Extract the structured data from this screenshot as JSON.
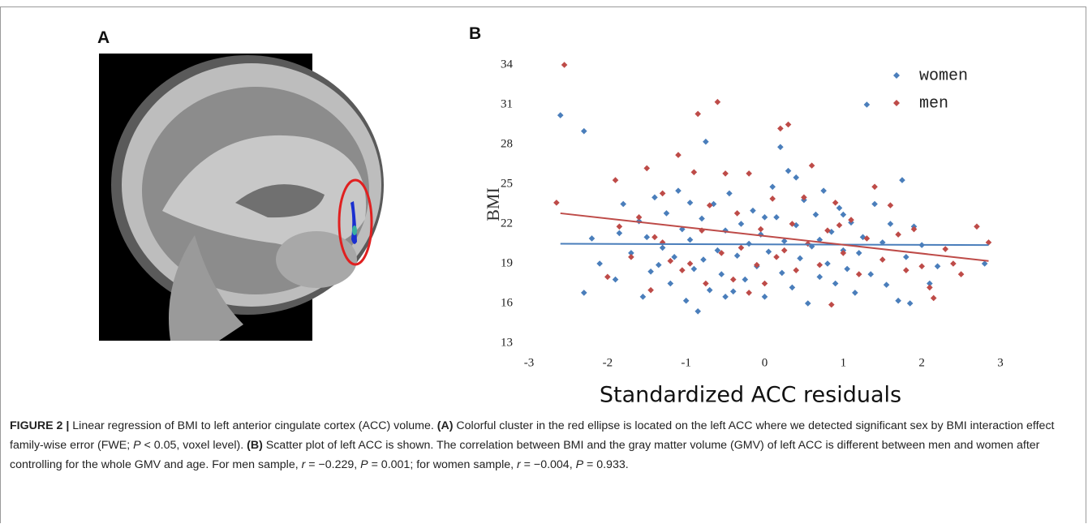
{
  "figure": {
    "panel_labels": [
      "A",
      "B"
    ],
    "caption": [
      "FIGURE 2 | ",
      "Linear regression of BMI to left anterior cingulate cortex (ACC) volume. ",
      "(A)",
      " Colorful cluster in the red ellipse is located on the left ACC where we detected significant sex by BMI interaction effect family-wise error (FWE; ",
      "P",
      " < 0.05, voxel level). ",
      "(B)",
      " Scatter plot of left ACC is shown. The correlation between BMI and the gray matter volume (GMV) of left ACC is different between men and women after controlling for the whole GMV and age. For men sample, ",
      "r",
      " = −0.229, ",
      "P",
      " = 0.001; for women sample, ",
      "r",
      " = −0.004, ",
      "P",
      " = 0.933."
    ]
  },
  "chart_data": {
    "type": "scatter",
    "x_label": "Standardized ACC residuals",
    "y_label": "BMI",
    "xlim": [
      -3,
      3
    ],
    "xticks": [
      -3,
      -2,
      -1,
      0,
      1,
      2,
      3
    ],
    "ylim": [
      13,
      34
    ],
    "yticks": [
      13,
      16,
      19,
      22,
      25,
      28,
      31,
      34
    ],
    "grid": false,
    "legend": "top-right",
    "series": [
      {
        "name": "women",
        "color": "#4a7ebb",
        "x": [
          -2.6,
          -2.3,
          -2.3,
          -2.2,
          -2.1,
          -1.9,
          -1.85,
          -1.8,
          -1.7,
          -1.6,
          -1.55,
          -1.5,
          -1.45,
          -1.4,
          -1.3,
          -1.25,
          -1.2,
          -1.15,
          -1.1,
          -1.05,
          -1.0,
          -0.95,
          -0.9,
          -0.85,
          -0.8,
          -0.78,
          -0.75,
          -0.7,
          -0.65,
          -0.6,
          -0.55,
          -0.5,
          -0.45,
          -0.4,
          -0.35,
          -0.3,
          -0.25,
          -0.2,
          -0.15,
          -0.1,
          -0.05,
          0.0,
          0.05,
          0.1,
          0.15,
          0.2,
          0.22,
          0.25,
          0.3,
          0.35,
          0.4,
          0.45,
          0.5,
          0.55,
          0.6,
          0.65,
          0.7,
          0.75,
          0.8,
          0.85,
          0.9,
          0.95,
          1.0,
          1.05,
          1.1,
          1.15,
          1.2,
          1.25,
          1.3,
          1.35,
          1.4,
          1.5,
          1.55,
          1.6,
          1.7,
          1.75,
          1.8,
          1.85,
          1.9,
          2.0,
          2.1,
          2.2,
          2.8,
          -1.35,
          -0.95,
          0.0,
          0.4,
          1.0,
          -0.5,
          0.7
        ],
        "values": [
          30.2,
          29.0,
          16.8,
          20.9,
          19.0,
          17.8,
          21.3,
          23.5,
          19.8,
          22.2,
          16.5,
          21.0,
          18.4,
          24.0,
          20.2,
          22.8,
          17.5,
          19.5,
          24.5,
          21.6,
          16.2,
          20.8,
          18.6,
          15.4,
          22.4,
          19.3,
          28.2,
          17.0,
          23.5,
          20.0,
          18.2,
          21.5,
          24.3,
          16.9,
          19.6,
          22.0,
          17.8,
          20.5,
          23.0,
          18.8,
          21.2,
          16.5,
          19.9,
          24.8,
          22.5,
          27.8,
          18.3,
          20.7,
          26.0,
          17.2,
          21.9,
          19.4,
          23.8,
          16.0,
          20.3,
          22.7,
          18.0,
          24.5,
          19.0,
          21.4,
          17.5,
          23.2,
          20.0,
          18.6,
          22.1,
          16.8,
          19.8,
          21.0,
          31.0,
          18.2,
          23.5,
          20.6,
          17.4,
          22.0,
          16.2,
          25.3,
          19.5,
          16.0,
          21.8,
          20.4,
          17.5,
          18.8,
          19.0,
          18.9,
          23.6,
          22.5,
          25.5,
          22.7,
          16.5,
          20.8
        ],
        "fit_x": [
          -2.6,
          2.85
        ],
        "fit_y": [
          20.5,
          20.4
        ]
      },
      {
        "name": "men",
        "color": "#be4b48",
        "x": [
          -2.65,
          -2.55,
          -2.0,
          -1.9,
          -1.85,
          -1.7,
          -1.6,
          -1.5,
          -1.45,
          -1.4,
          -1.3,
          -1.2,
          -1.1,
          -1.05,
          -0.9,
          -0.85,
          -0.8,
          -0.75,
          -0.7,
          -0.6,
          -0.55,
          -0.5,
          -0.4,
          -0.35,
          -0.3,
          -0.2,
          -0.1,
          -0.05,
          0.0,
          0.1,
          0.15,
          0.2,
          0.3,
          0.35,
          0.4,
          0.5,
          0.55,
          0.6,
          0.7,
          0.8,
          0.85,
          0.9,
          1.0,
          1.1,
          1.2,
          1.3,
          1.4,
          1.5,
          1.6,
          1.7,
          1.8,
          1.9,
          2.0,
          2.1,
          2.15,
          2.3,
          2.4,
          2.5,
          2.7,
          2.85,
          -1.3,
          -0.2,
          0.25,
          0.95,
          -0.95
        ],
        "values": [
          23.6,
          34.0,
          18.0,
          25.3,
          21.8,
          19.5,
          22.5,
          26.2,
          17.0,
          21.0,
          24.3,
          19.2,
          27.2,
          18.5,
          25.9,
          30.3,
          21.5,
          17.5,
          23.4,
          31.2,
          19.8,
          25.8,
          17.8,
          22.8,
          20.2,
          25.8,
          18.9,
          21.6,
          17.5,
          23.9,
          19.5,
          29.2,
          29.5,
          22.0,
          18.5,
          24.0,
          20.5,
          26.4,
          18.9,
          21.5,
          15.9,
          23.6,
          19.8,
          22.3,
          18.2,
          20.9,
          24.8,
          19.3,
          23.4,
          21.2,
          18.5,
          21.6,
          18.8,
          17.2,
          16.4,
          20.1,
          19.0,
          18.2,
          21.8,
          20.6,
          20.6,
          16.8,
          20.0,
          21.9,
          19.0
        ],
        "fit_x": [
          -2.6,
          2.85
        ],
        "fit_y": [
          22.8,
          19.2
        ]
      }
    ]
  }
}
